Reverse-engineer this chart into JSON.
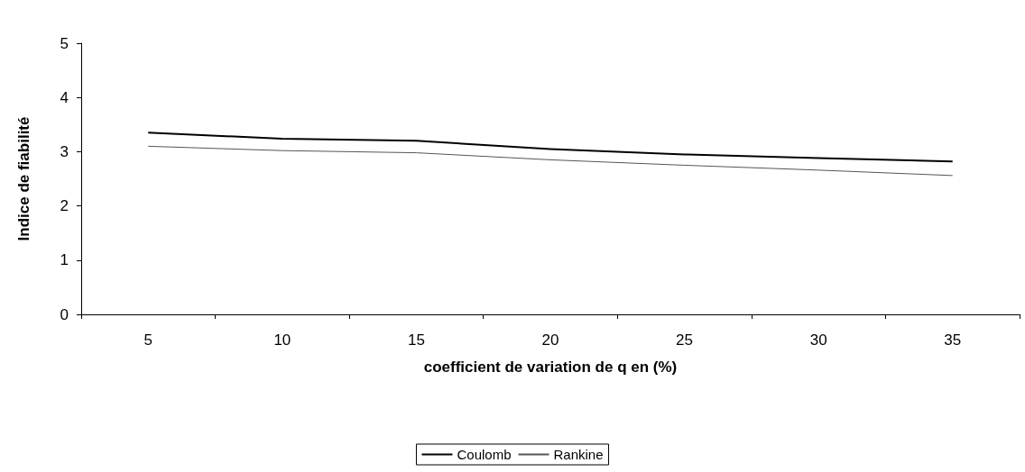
{
  "chart_data": {
    "type": "line",
    "xlabel": "coefficient de variation de q en (%)",
    "ylabel": "Indice de fiabilité",
    "categories": [
      "5",
      "10",
      "15",
      "20",
      "25",
      "30",
      "35"
    ],
    "series": [
      {
        "name": "Coulomb",
        "color": "#000000",
        "values": [
          3.35,
          3.24,
          3.2,
          3.05,
          2.95,
          2.88,
          2.82
        ]
      },
      {
        "name": "Rankine",
        "color": "#555555",
        "values": [
          3.1,
          3.02,
          2.98,
          2.85,
          2.75,
          2.66,
          2.56
        ]
      }
    ],
    "ylim": [
      0,
      5
    ],
    "yticks": [
      0,
      1,
      2,
      3,
      4,
      5
    ],
    "grid": false,
    "legend": "bottom",
    "marker": "none",
    "line_style": "solid"
  }
}
